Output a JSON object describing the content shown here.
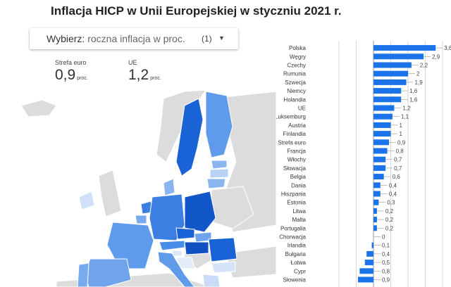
{
  "title": "Inflacja HICP w Unii Europejskiej w styczniu 2021 r.",
  "selector": {
    "prefix": "Wybierz:",
    "value": "roczna inflacja w proc.",
    "count": "(1)",
    "icon": "dropdown-caret-icon"
  },
  "stats": [
    {
      "label": "Strefa euro",
      "value": "0,9",
      "unit": "proc."
    },
    {
      "label": "UE",
      "value": "1,2",
      "unit": "proc."
    }
  ],
  "colors": {
    "positive": "#1a73e8",
    "negative": "#1a73e8",
    "map_base": "#dcdcdc",
    "map_data": "#4a8de8"
  },
  "chart_data": {
    "type": "bar",
    "orientation": "horizontal",
    "categories": [
      "Polska",
      "Węgry",
      "Czechy",
      "Rumunia",
      "Szwecja",
      "Niemcy",
      "Holandia",
      "UE",
      "Luksemburg",
      "Austria",
      "Finlandia",
      "Strefa euro",
      "Francja",
      "Włochy",
      "Słowacja",
      "Belgia",
      "Dania",
      "Hiszpania",
      "Estonia",
      "Litwa",
      "Malta",
      "Portugalia",
      "Chorwacja",
      "Irlandia",
      "Bułgaria",
      "Łotwa",
      "Cypr",
      "Słowenia"
    ],
    "values": [
      3.6,
      2.9,
      2.2,
      2.0,
      1.9,
      1.6,
      1.6,
      1.2,
      1.1,
      1.0,
      1.0,
      0.9,
      0.8,
      0.7,
      0.7,
      0.6,
      0.4,
      0.4,
      0.3,
      0.2,
      0.2,
      0.2,
      0.0,
      -0.1,
      -0.4,
      -0.5,
      -0.8,
      -0.9
    ],
    "value_labels": [
      "3,6",
      "2,9",
      "2,2",
      "2",
      "1,9",
      "1,6",
      "1,6",
      "1,2",
      "1,1",
      "1",
      "1",
      "0,9",
      "0,8",
      "0,7",
      "0,7",
      "0,6",
      "0,4",
      "0,4",
      "0,3",
      "0,2",
      "0,2",
      "0,2",
      "0",
      "0,1",
      "0,4",
      "0,5",
      "0,8",
      "0,9"
    ],
    "grid": true,
    "legend": "none"
  }
}
